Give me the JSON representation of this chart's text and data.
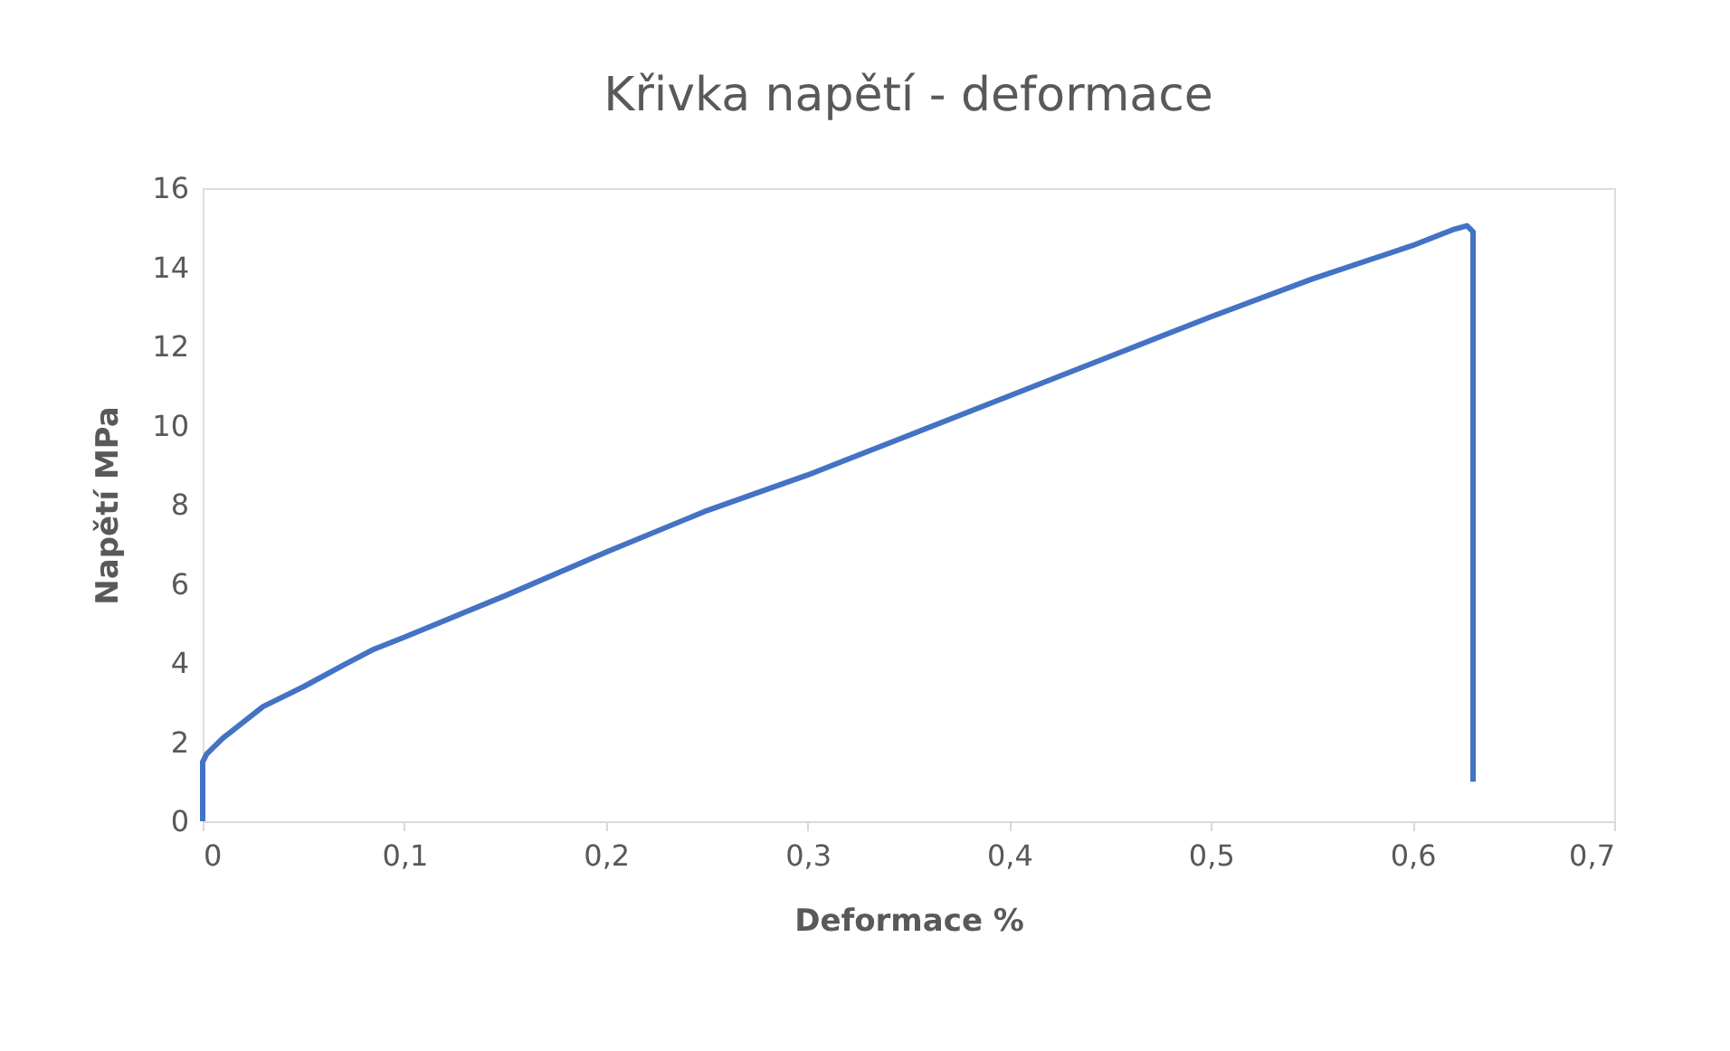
{
  "chart_data": {
    "type": "line",
    "title": "Křivka napětí - deformace",
    "xlabel": "Deformace %",
    "ylabel": "Napětí MPa",
    "x": [
      0,
      0,
      0.002,
      0.01,
      0.02,
      0.03,
      0.05,
      0.07,
      0.085,
      0.1,
      0.15,
      0.2,
      0.25,
      0.3,
      0.35,
      0.4,
      0.45,
      0.5,
      0.55,
      0.6,
      0.62,
      0.627,
      0.63,
      0.63,
      0.63
    ],
    "series": [
      {
        "color": "#4472c4",
        "values": [
          0,
          1.5,
          1.7,
          2.1,
          2.5,
          2.9,
          3.4,
          3.95,
          4.35,
          4.65,
          5.7,
          6.8,
          7.85,
          8.75,
          9.75,
          10.75,
          11.75,
          12.75,
          13.7,
          14.55,
          14.95,
          15.05,
          14.9,
          14.7,
          1.0
        ]
      }
    ],
    "xlim": [
      0,
      0.7
    ],
    "ylim": [
      0,
      16
    ],
    "xticks": [
      0,
      {
        "value": 0.1,
        "label": "0,1"
      },
      {
        "value": 0.2,
        "label": "0,2"
      },
      {
        "value": 0.3,
        "label": "0,3"
      },
      {
        "value": 0.4,
        "label": "0,4"
      },
      {
        "value": 0.5,
        "label": "0,5"
      },
      {
        "value": 0.6,
        "label": "0,6"
      },
      {
        "value": 0.7,
        "label": "0,7"
      }
    ],
    "yticks": [
      0,
      2,
      4,
      6,
      8,
      10,
      12,
      14,
      16
    ],
    "grid": false,
    "marker": "none",
    "line_style": "solid"
  }
}
